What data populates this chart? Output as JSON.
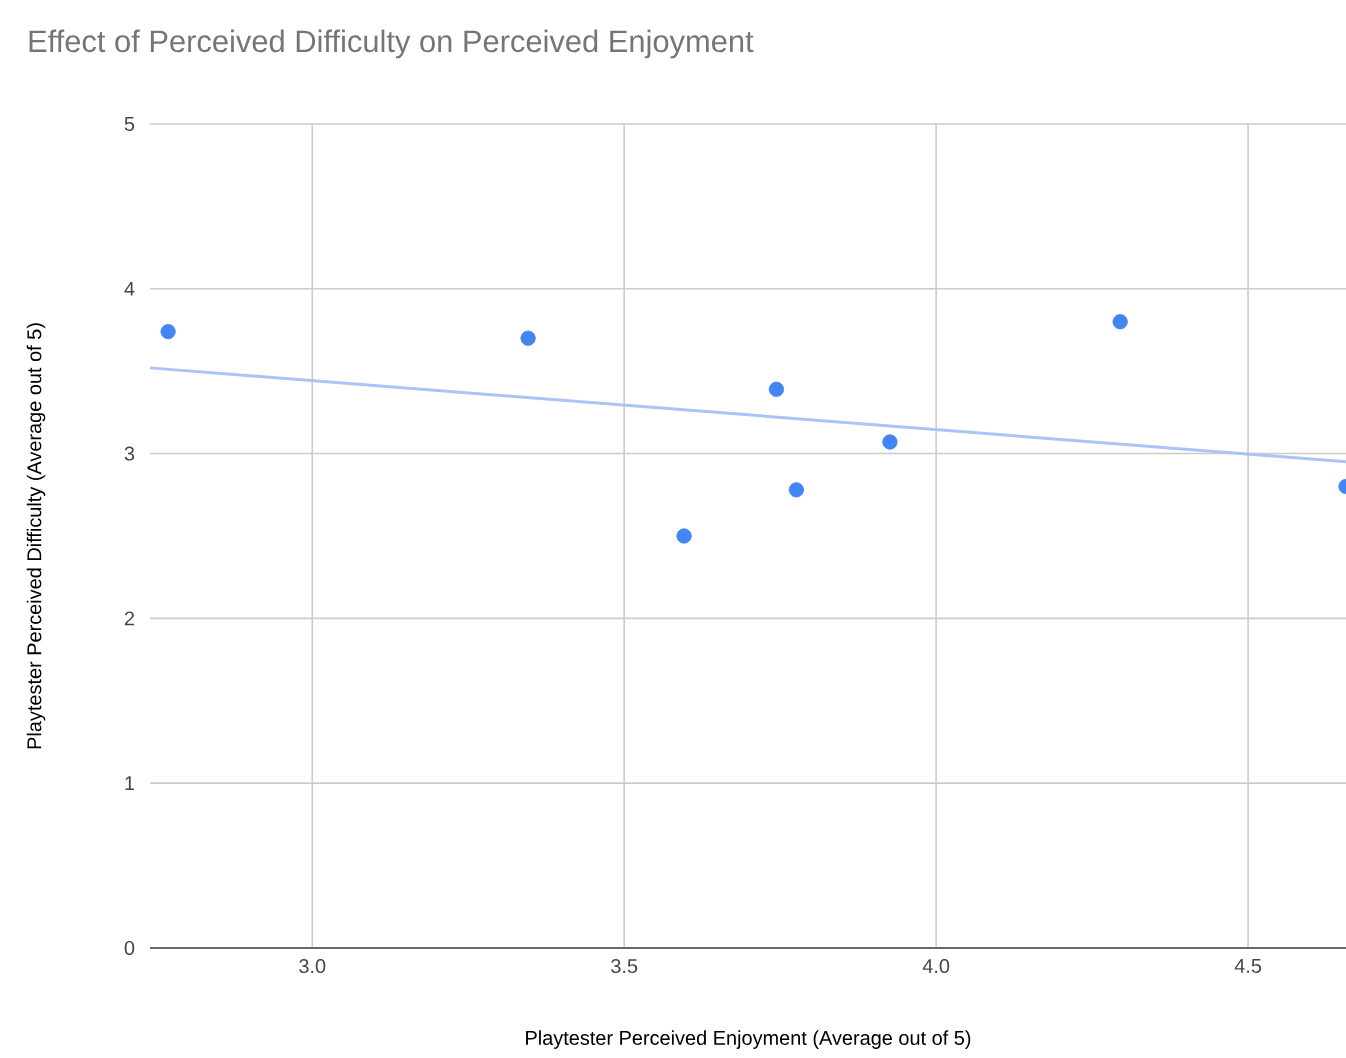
{
  "chart_data": {
    "type": "scatter",
    "title": "Effect of Perceived Difficulty on Perceived Enjoyment",
    "xlabel": "Playtester Perceived Enjoyment (Average out of 5)",
    "ylabel": "Playtester Perceived Difficulty (Average out of 5)",
    "series": [
      {
        "color": "#4285f4",
        "x": [
          2.769,
          3.346,
          3.744,
          3.596,
          3.776,
          3.926,
          4.295,
          4.657
        ],
        "values": [
          3.74,
          3.7,
          3.39,
          2.5,
          2.78,
          3.07,
          3.8,
          2.8
        ]
      },
      {
        "type": "line",
        "color": "#aac4f8",
        "x": [
          2.74,
          4.657
        ],
        "values": [
          3.52,
          2.95
        ]
      }
    ],
    "xlim": [
      2.74,
      4.657
    ],
    "ylim": [
      0,
      5
    ],
    "xticks": [
      {
        "value": 3,
        "label": "3.0"
      },
      3.5,
      {
        "value": 4,
        "label": "4.0"
      },
      4.5
    ],
    "yticks": [
      0,
      1,
      2,
      3,
      4,
      5
    ],
    "grid": true
  }
}
